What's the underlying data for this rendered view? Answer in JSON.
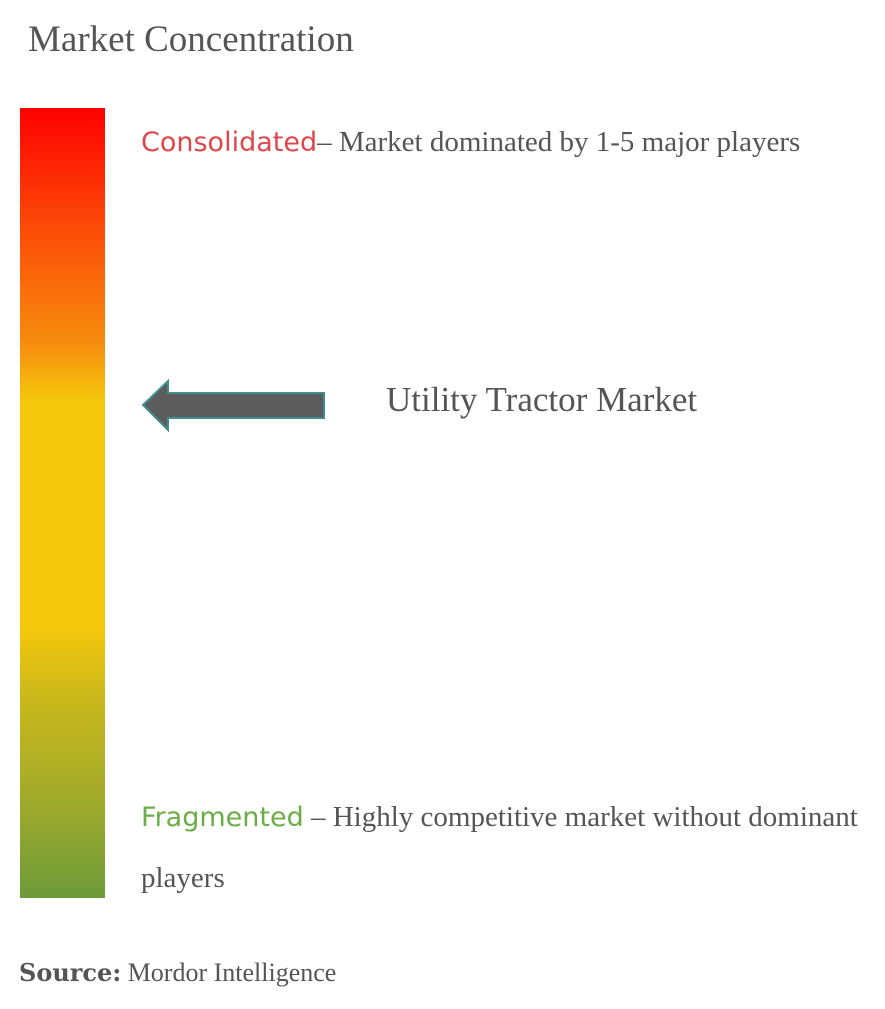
{
  "title": "Market Concentration",
  "scale": {
    "colors": [
      "#ff0000",
      "#f78e0e",
      "#f4c70c",
      "#6d9a3a"
    ],
    "consolidated": {
      "label": "Consolidated",
      "description": "– Market dominated by 1-5 major players",
      "color": "#e0474c"
    },
    "fragmented": {
      "label": "Fragmented",
      "description": " – Highly competitive market without dominant players",
      "color": "#6cae46"
    }
  },
  "marker": {
    "label": "Utility Tractor Market",
    "icon": "arrow-left-icon"
  },
  "source": {
    "label": "Source:",
    "value": " Mordor Intelligence"
  }
}
